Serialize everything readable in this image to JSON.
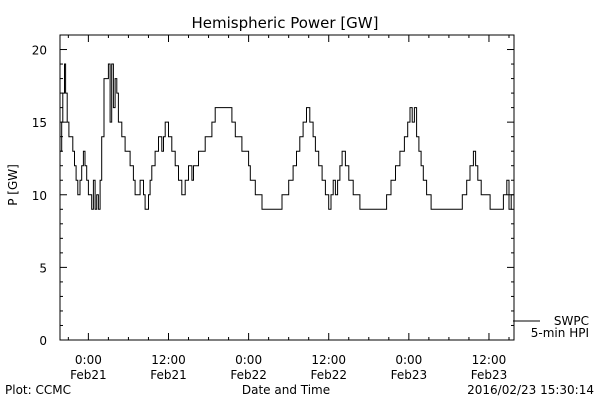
{
  "chart_data": {
    "type": "line",
    "title": "Hemispheric Power [GW]",
    "xlabel": "Date and Time",
    "ylabel": "P [GW]",
    "ylim": [
      0,
      21
    ],
    "y_ticks": [
      {
        "value": 0,
        "label": "0"
      },
      {
        "value": 5,
        "label": "5"
      },
      {
        "value": 10,
        "label": "10"
      },
      {
        "value": 15,
        "label": "15"
      },
      {
        "value": 20,
        "label": "20"
      }
    ],
    "xlim": [
      "2016-02-20 19:45",
      "2016-02-23 15:45"
    ],
    "x_ticks": [
      {
        "value": "2016-02-21 00:00",
        "time": "0:00",
        "date": "Feb21"
      },
      {
        "value": "2016-02-21 12:00",
        "time": "12:00",
        "date": "Feb21"
      },
      {
        "value": "2016-02-22 00:00",
        "time": "0:00",
        "date": "Feb22"
      },
      {
        "value": "2016-02-22 12:00",
        "time": "12:00",
        "date": "Feb22"
      },
      {
        "value": "2016-02-23 00:00",
        "time": "0:00",
        "date": "Feb23"
      },
      {
        "value": "2016-02-23 12:00",
        "time": "12:00",
        "date": "Feb23"
      }
    ],
    "grid": false,
    "legend": {
      "placement": "bottom-right",
      "entries": [
        "SWPC",
        "5-min HPI"
      ]
    },
    "series": [
      {
        "name": "SWPC",
        "color": "#000000",
        "step": true,
        "points": [
          [
            "2016-02-20 19:45",
            13
          ],
          [
            "2016-02-20 20:00",
            15
          ],
          [
            "2016-02-20 20:10",
            17
          ],
          [
            "2016-02-20 20:25",
            19
          ],
          [
            "2016-02-20 20:35",
            17
          ],
          [
            "2016-02-20 20:50",
            15
          ],
          [
            "2016-02-20 21:05",
            14
          ],
          [
            "2016-02-20 21:40",
            13
          ],
          [
            "2016-02-20 21:55",
            12
          ],
          [
            "2016-02-20 22:10",
            11
          ],
          [
            "2016-02-20 22:25",
            10
          ],
          [
            "2016-02-20 22:45",
            11
          ],
          [
            "2016-02-20 23:00",
            12
          ],
          [
            "2016-02-20 23:15",
            13
          ],
          [
            "2016-02-20 23:30",
            12
          ],
          [
            "2016-02-20 23:45",
            11
          ],
          [
            "2016-02-21 00:00",
            10
          ],
          [
            "2016-02-21 00:30",
            9
          ],
          [
            "2016-02-21 00:45",
            11
          ],
          [
            "2016-02-21 01:00",
            9
          ],
          [
            "2016-02-21 01:15",
            10
          ],
          [
            "2016-02-21 01:30",
            9
          ],
          [
            "2016-02-21 01:45",
            11
          ],
          [
            "2016-02-21 02:00",
            14
          ],
          [
            "2016-02-21 02:20",
            18
          ],
          [
            "2016-02-21 03:00",
            19
          ],
          [
            "2016-02-21 03:15",
            15
          ],
          [
            "2016-02-21 03:30",
            19
          ],
          [
            "2016-02-21 03:45",
            16
          ],
          [
            "2016-02-21 04:00",
            18
          ],
          [
            "2016-02-21 04:15",
            17
          ],
          [
            "2016-02-21 04:30",
            15
          ],
          [
            "2016-02-21 05:00",
            14
          ],
          [
            "2016-02-21 05:30",
            13
          ],
          [
            "2016-02-21 06:15",
            12
          ],
          [
            "2016-02-21 06:45",
            11
          ],
          [
            "2016-02-21 07:00",
            10
          ],
          [
            "2016-02-21 07:45",
            11
          ],
          [
            "2016-02-21 08:15",
            10
          ],
          [
            "2016-02-21 08:30",
            9
          ],
          [
            "2016-02-21 09:00",
            10
          ],
          [
            "2016-02-21 09:15",
            11
          ],
          [
            "2016-02-21 09:30",
            12
          ],
          [
            "2016-02-21 10:00",
            13
          ],
          [
            "2016-02-21 10:30",
            14
          ],
          [
            "2016-02-21 11:00",
            13
          ],
          [
            "2016-02-21 11:15",
            14
          ],
          [
            "2016-02-21 11:30",
            15
          ],
          [
            "2016-02-21 12:00",
            14
          ],
          [
            "2016-02-21 12:30",
            13
          ],
          [
            "2016-02-21 13:00",
            12
          ],
          [
            "2016-02-21 13:30",
            11
          ],
          [
            "2016-02-21 14:00",
            10
          ],
          [
            "2016-02-21 14:30",
            11
          ],
          [
            "2016-02-21 15:00",
            12
          ],
          [
            "2016-02-21 15:30",
            11
          ],
          [
            "2016-02-21 15:45",
            12
          ],
          [
            "2016-02-21 16:00",
            12
          ],
          [
            "2016-02-21 16:30",
            13
          ],
          [
            "2016-02-21 17:30",
            14
          ],
          [
            "2016-02-21 18:30",
            15
          ],
          [
            "2016-02-21 19:00",
            16
          ],
          [
            "2016-02-21 21:30",
            15
          ],
          [
            "2016-02-21 22:00",
            14
          ],
          [
            "2016-02-21 23:00",
            13
          ],
          [
            "2016-02-22 00:00",
            12
          ],
          [
            "2016-02-22 00:15",
            11
          ],
          [
            "2016-02-22 01:00",
            10
          ],
          [
            "2016-02-22 02:00",
            9
          ],
          [
            "2016-02-22 05:00",
            10
          ],
          [
            "2016-02-22 06:00",
            11
          ],
          [
            "2016-02-22 06:40",
            12
          ],
          [
            "2016-02-22 07:10",
            13
          ],
          [
            "2016-02-22 07:40",
            14
          ],
          [
            "2016-02-22 08:10",
            15
          ],
          [
            "2016-02-22 08:40",
            16
          ],
          [
            "2016-02-22 09:10",
            15
          ],
          [
            "2016-02-22 09:40",
            14
          ],
          [
            "2016-02-22 10:00",
            13
          ],
          [
            "2016-02-22 10:30",
            12
          ],
          [
            "2016-02-22 11:00",
            11
          ],
          [
            "2016-02-22 11:30",
            10
          ],
          [
            "2016-02-22 12:00",
            9
          ],
          [
            "2016-02-22 12:20",
            10
          ],
          [
            "2016-02-22 12:40",
            11
          ],
          [
            "2016-02-22 13:00",
            10
          ],
          [
            "2016-02-22 13:20",
            11
          ],
          [
            "2016-02-22 13:40",
            12
          ],
          [
            "2016-02-22 14:00",
            13
          ],
          [
            "2016-02-22 14:30",
            12
          ],
          [
            "2016-02-22 15:00",
            11
          ],
          [
            "2016-02-22 15:40",
            10
          ],
          [
            "2016-02-22 16:40",
            9
          ],
          [
            "2016-02-22 20:40",
            10
          ],
          [
            "2016-02-22 21:20",
            11
          ],
          [
            "2016-02-22 22:00",
            12
          ],
          [
            "2016-02-22 22:40",
            13
          ],
          [
            "2016-02-22 23:20",
            14
          ],
          [
            "2016-02-22 23:50",
            15
          ],
          [
            "2016-02-23 00:10",
            16
          ],
          [
            "2016-02-23 00:30",
            15
          ],
          [
            "2016-02-23 00:50",
            16
          ],
          [
            "2016-02-23 01:10",
            14
          ],
          [
            "2016-02-23 01:30",
            13
          ],
          [
            "2016-02-23 01:50",
            12
          ],
          [
            "2016-02-23 02:10",
            11
          ],
          [
            "2016-02-23 02:40",
            10
          ],
          [
            "2016-02-23 03:20",
            9
          ],
          [
            "2016-02-23 08:00",
            10
          ],
          [
            "2016-02-23 08:40",
            11
          ],
          [
            "2016-02-23 09:10",
            12
          ],
          [
            "2016-02-23 09:40",
            13
          ],
          [
            "2016-02-23 10:00",
            12
          ],
          [
            "2016-02-23 10:20",
            11
          ],
          [
            "2016-02-23 10:50",
            10
          ],
          [
            "2016-02-23 12:10",
            9
          ],
          [
            "2016-02-23 14:10",
            10
          ],
          [
            "2016-02-23 14:40",
            11
          ],
          [
            "2016-02-23 15:00",
            9
          ],
          [
            "2016-02-23 15:20",
            10
          ],
          [
            "2016-02-23 15:45",
            10
          ]
        ]
      },
      {
        "name": "5-min HPI",
        "color": "#000000",
        "step": true,
        "points": []
      }
    ]
  },
  "footer": {
    "left": "Plot: CCMC",
    "center": "Date and Time",
    "right": "2016/02/23 15:30:14"
  }
}
